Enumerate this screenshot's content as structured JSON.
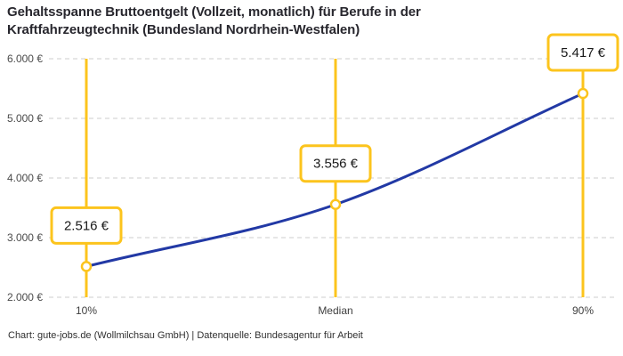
{
  "title": "Gehaltsspanne Bruttoentgelt (Vollzeit, monatlich) für Berufe in der Kraftfahrzeugtechnik (Bundesland Nordrhein-Westfalen)",
  "footer": "Chart: gute-jobs.de (Wollmilchsau GmbH) | Datenquelle: Bundesagentur für Arbeit",
  "chart_data": {
    "type": "line",
    "title": "Gehaltsspanne Bruttoentgelt (Vollzeit, monatlich) für Berufe in der Kraftfahrzeugtechnik (Bundesland Nordrhein-Westfalen)",
    "xlabel": "",
    "ylabel": "",
    "categories": [
      "10%",
      "Median",
      "90%"
    ],
    "values": [
      2516,
      3556,
      5417
    ],
    "value_labels": [
      "2.516 €",
      "3.556 €",
      "5.417 €"
    ],
    "ylim": [
      2000,
      6000
    ],
    "y_ticks": [
      2000,
      3000,
      4000,
      5000,
      6000
    ],
    "y_tick_labels": [
      "2.000 €",
      "3.000 €",
      "4.000 €",
      "5.000 €",
      "6.000 €"
    ],
    "grid": "horizontal-dashed",
    "legend": "none",
    "colors": {
      "highlight": "#fcc41d",
      "line": "#2239a5",
      "grid": "#cccccc",
      "axis_text": "#4b4b4b",
      "title_text": "#28272e",
      "value_text": "#191919",
      "marker_fill": "#ffffff",
      "background": "#ffffff"
    }
  }
}
